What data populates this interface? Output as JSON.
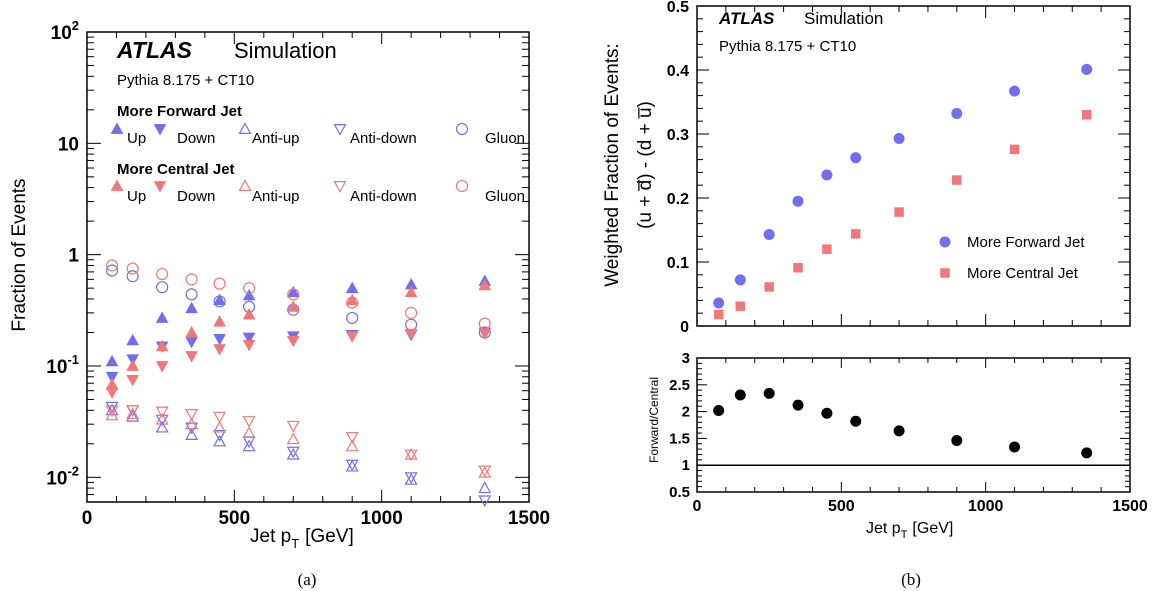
{
  "chart_data": [
    {
      "panel_label": "(a)",
      "type": "scatter",
      "xlabel_main": "Jet p",
      "xlabel_sub": "T",
      "xlabel_unit": "[GeV]",
      "ylabel": "Fraction of Events",
      "x_range": [
        0,
        1500
      ],
      "y_range": [
        0.006,
        100
      ],
      "y_scale": "log",
      "x_ticks": [
        "0",
        "500",
        "1000",
        "1500"
      ],
      "y_ticks": [
        {
          "base": "10",
          "exp": "-2",
          "v": 0.01
        },
        {
          "base": "10",
          "exp": "-1",
          "v": 0.1
        },
        {
          "base": "1",
          "exp": "",
          "v": 1
        },
        {
          "base": "10",
          "exp": "",
          "v": 10
        },
        {
          "base": "10",
          "exp": "2",
          "v": 100
        }
      ],
      "atlas_label": "ATLAS",
      "atlas_sub": "Simulation",
      "generator": "Pythia 8.175 + CT10",
      "legend_group_forward": "More Forward Jet",
      "legend_group_central": "More Central Jet",
      "legend_labels": [
        "Up",
        "Down",
        "Anti-up",
        "Anti-down",
        "Gluon"
      ],
      "colors": {
        "forward": "#6f6ff0",
        "central": "#f07878"
      },
      "x": [
        85,
        155,
        255,
        355,
        450,
        550,
        700,
        900,
        1100,
        1350
      ],
      "series": [
        {
          "group": "forward",
          "name": "Up",
          "marker": "triangle-up-filled",
          "values": [
            0.11,
            0.17,
            0.27,
            0.33,
            0.39,
            0.43,
            0.46,
            0.5,
            0.54,
            0.58
          ]
        },
        {
          "group": "forward",
          "name": "Down",
          "marker": "triangle-down-filled",
          "values": [
            0.08,
            0.115,
            0.15,
            0.165,
            0.175,
            0.18,
            0.185,
            0.19,
            0.19,
            0.2
          ]
        },
        {
          "group": "forward",
          "name": "Anti-up",
          "marker": "triangle-up-open",
          "values": [
            0.04,
            0.035,
            0.028,
            0.024,
            0.021,
            0.019,
            0.016,
            0.0125,
            0.0095,
            0.008
          ]
        },
        {
          "group": "forward",
          "name": "Anti-down",
          "marker": "triangle-down-open",
          "values": [
            0.043,
            0.04,
            0.033,
            0.028,
            0.024,
            0.021,
            0.017,
            0.013,
            0.01,
            0.0062
          ]
        },
        {
          "group": "forward",
          "name": "Gluon",
          "marker": "circle-open",
          "values": [
            0.72,
            0.64,
            0.51,
            0.44,
            0.38,
            0.34,
            0.32,
            0.27,
            0.235,
            0.2
          ]
        },
        {
          "group": "central",
          "name": "Up",
          "marker": "triangle-up-filled",
          "values": [
            0.068,
            0.1,
            0.15,
            0.2,
            0.25,
            0.29,
            0.34,
            0.39,
            0.46,
            0.53
          ]
        },
        {
          "group": "central",
          "name": "Down",
          "marker": "triangle-down-filled",
          "values": [
            0.058,
            0.075,
            0.1,
            0.123,
            0.142,
            0.155,
            0.168,
            0.185,
            0.195,
            0.195
          ]
        },
        {
          "group": "central",
          "name": "Anti-up",
          "marker": "triangle-up-open",
          "values": [
            0.036,
            0.037,
            0.033,
            0.03,
            0.028,
            0.025,
            0.022,
            0.019,
            0.016,
            0.011
          ]
        },
        {
          "group": "central",
          "name": "Anti-down",
          "marker": "triangle-down-open",
          "values": [
            0.04,
            0.04,
            0.039,
            0.037,
            0.035,
            0.032,
            0.029,
            0.023,
            0.016,
            0.0115
          ]
        },
        {
          "group": "central",
          "name": "Gluon",
          "marker": "circle-open",
          "values": [
            0.8,
            0.75,
            0.67,
            0.6,
            0.55,
            0.5,
            0.44,
            0.37,
            0.3,
            0.24
          ]
        }
      ]
    },
    {
      "panel_label": "(b)",
      "type": "scatter",
      "ylabel_line1": "Weighted Fraction of Events:",
      "ylabel_line2": "(u + d̅) - (d + u̅)",
      "x_range": [
        0,
        1500
      ],
      "y_range": [
        0,
        0.5
      ],
      "y_ticks": [
        "0",
        "0.1",
        "0.2",
        "0.3",
        "0.4",
        "0.5"
      ],
      "atlas_label": "ATLAS",
      "atlas_sub": "Simulation",
      "generator": "Pythia 8.175 + CT10",
      "x": [
        75,
        150,
        250,
        350,
        450,
        550,
        700,
        900,
        1100,
        1350
      ],
      "series": [
        {
          "name": "More Forward Jet",
          "marker": "circle-filled",
          "color": "#6f6ff0",
          "values": [
            0.036,
            0.072,
            0.143,
            0.195,
            0.236,
            0.263,
            0.293,
            0.332,
            0.367,
            0.401
          ]
        },
        {
          "name": "More Central Jet",
          "marker": "square-filled",
          "color": "#f07878",
          "values": [
            0.018,
            0.031,
            0.061,
            0.091,
            0.12,
            0.144,
            0.178,
            0.228,
            0.276,
            0.33
          ]
        }
      ]
    },
    {
      "panel_label": "(b) ratio",
      "type": "scatter",
      "xlabel_main": "Jet p",
      "xlabel_sub": "T",
      "xlabel_unit": "[GeV]",
      "ylabel": "Forward/Central",
      "x_range": [
        0,
        1500
      ],
      "y_range": [
        0.5,
        3
      ],
      "x_ticks": [
        "0",
        "500",
        "1000",
        "1500"
      ],
      "y_ticks": [
        "0.5",
        "1",
        "1.5",
        "2",
        "2.5",
        "3"
      ],
      "reference_line": 1,
      "x": [
        75,
        150,
        250,
        350,
        450,
        550,
        700,
        900,
        1100,
        1350
      ],
      "series": [
        {
          "name": "Forward/Central",
          "marker": "circle-filled",
          "color": "#000000",
          "values": [
            2.02,
            2.31,
            2.34,
            2.12,
            1.97,
            1.82,
            1.64,
            1.46,
            1.34,
            1.23
          ]
        }
      ]
    }
  ]
}
